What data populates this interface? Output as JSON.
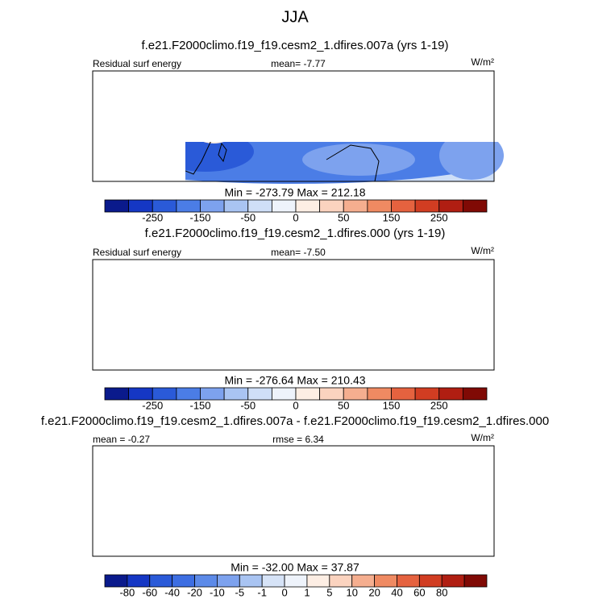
{
  "title": "JJA",
  "panels": [
    {
      "title": "f.e21.F2000climo.f19_f19.cesm2_1.dfires.007a (yrs 1-19)",
      "left": "Residual surf energy",
      "center": "mean=  -7.77",
      "right": "W/m²",
      "stats": "Min = -273.79 Max = 212.18",
      "colorbar": {
        "labels": [
          -250,
          -150,
          -50,
          0,
          50,
          150,
          250
        ],
        "colors": [
          "#0a1a8c",
          "#1537c4",
          "#2a5ad8",
          "#4b7de6",
          "#7da2ee",
          "#a9c4f2",
          "#cfdff7",
          "#eef3fb",
          "#fdeee4",
          "#fbd3bf",
          "#f5ae8f",
          "#ef8a62",
          "#e5623f",
          "#d13d22",
          "#b01e12",
          "#800a05"
        ]
      }
    },
    {
      "title": "f.e21.F2000climo.f19_f19.cesm2_1.dfires.000 (yrs 1-19)",
      "left": "Residual surf energy",
      "center": "mean=  -7.50",
      "right": "W/m²",
      "stats": "Min = -276.64 Max = 210.43",
      "colorbar": {
        "labels": [
          -250,
          -150,
          -50,
          0,
          50,
          150,
          250
        ],
        "colors": [
          "#0a1a8c",
          "#1537c4",
          "#2a5ad8",
          "#4b7de6",
          "#7da2ee",
          "#a9c4f2",
          "#cfdff7",
          "#eef3fb",
          "#fdeee4",
          "#fbd3bf",
          "#f5ae8f",
          "#ef8a62",
          "#e5623f",
          "#d13d22",
          "#b01e12",
          "#800a05"
        ]
      }
    },
    {
      "title": "f.e21.F2000climo.f19_f19.cesm2_1.dfires.007a - f.e21.F2000climo.f19_f19.cesm2_1.dfires.000",
      "left": "mean =  -0.27",
      "center": "rmse =  6.34",
      "right": "W/m²",
      "stats": "Min = -32.00 Max = 37.87",
      "colorbar": {
        "labels": [
          -80,
          -60,
          -40,
          -20,
          -10,
          -5,
          -1,
          0,
          1,
          5,
          10,
          20,
          40,
          60,
          80
        ],
        "colors": [
          "#0a1a8c",
          "#1537c4",
          "#2a5ad8",
          "#3d6ee2",
          "#5c8ae8",
          "#7da2ee",
          "#a9c4f2",
          "#d6e3f7",
          "#eef3fb",
          "#fdeee4",
          "#fbd3bf",
          "#f5ae8f",
          "#ef8a62",
          "#e5623f",
          "#d13d22",
          "#b01e12",
          "#800a05"
        ]
      }
    }
  ]
}
